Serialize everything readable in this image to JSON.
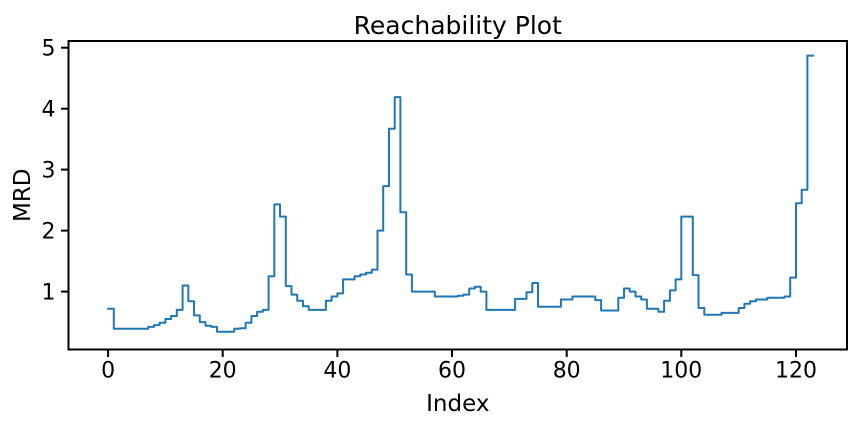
{
  "chart_data": {
    "type": "line",
    "drawstyle": "steps-post",
    "title": "Reachability Plot",
    "xlabel": "Index",
    "ylabel": "MRD",
    "x_start": 0,
    "x_step": 1,
    "values": [
      0.72,
      0.39,
      0.39,
      0.39,
      0.39,
      0.39,
      0.39,
      0.42,
      0.45,
      0.49,
      0.55,
      0.6,
      0.7,
      1.1,
      0.84,
      0.61,
      0.5,
      0.44,
      0.42,
      0.34,
      0.34,
      0.34,
      0.39,
      0.4,
      0.49,
      0.6,
      0.67,
      0.7,
      1.25,
      2.43,
      2.23,
      1.09,
      0.95,
      0.85,
      0.76,
      0.7,
      0.7,
      0.7,
      0.85,
      0.92,
      0.97,
      1.2,
      1.2,
      1.25,
      1.28,
      1.31,
      1.36,
      2.0,
      2.73,
      3.67,
      4.19,
      2.3,
      1.28,
      1.0,
      1.0,
      1.0,
      1.0,
      0.92,
      0.92,
      0.92,
      0.92,
      0.93,
      0.95,
      1.05,
      1.08,
      1.0,
      0.7,
      0.7,
      0.7,
      0.7,
      0.7,
      0.88,
      0.88,
      0.99,
      1.14,
      0.75,
      0.75,
      0.75,
      0.75,
      0.87,
      0.87,
      0.92,
      0.92,
      0.92,
      0.92,
      0.86,
      0.69,
      0.69,
      0.69,
      0.9,
      1.05,
      1.0,
      0.92,
      0.87,
      0.72,
      0.72,
      0.67,
      0.85,
      1.02,
      1.2,
      2.23,
      2.23,
      1.27,
      0.73,
      0.62,
      0.62,
      0.62,
      0.65,
      0.65,
      0.65,
      0.73,
      0.8,
      0.84,
      0.87,
      0.87,
      0.9,
      0.9,
      0.9,
      0.92,
      1.23,
      2.45,
      2.67,
      4.87,
      4.87
    ],
    "x_ticks": [
      0,
      20,
      40,
      60,
      80,
      100,
      120
    ],
    "y_ticks": [
      1,
      2,
      3,
      4,
      5
    ],
    "xlim": [
      -6.9,
      128.9
    ],
    "ylim": [
      0.05,
      5.11
    ],
    "line_color": "#1f77b4",
    "axis_color": "#000000",
    "background_color": "#ffffff",
    "grid": false,
    "legend_position": "none"
  }
}
